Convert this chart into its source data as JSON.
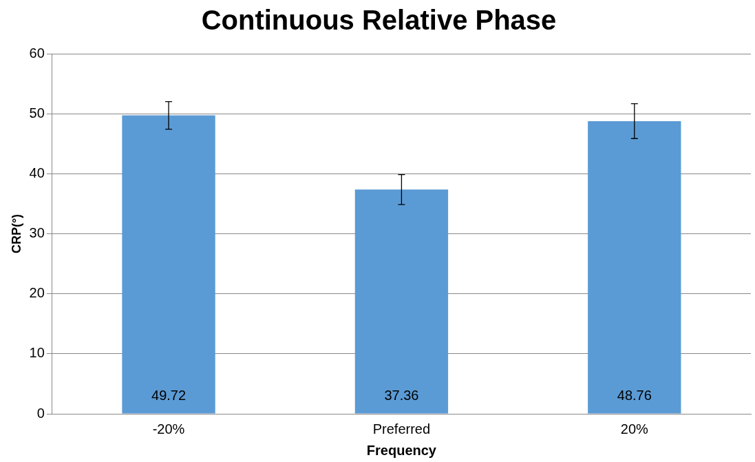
{
  "chart_data": {
    "type": "bar",
    "title": "Continuous Relative Phase",
    "xlabel": "Frequency",
    "ylabel": "CRP(°)",
    "categories": [
      "-20%",
      "Preferred",
      "20%"
    ],
    "values": [
      49.72,
      37.36,
      48.76
    ],
    "errors": [
      2.3,
      2.5,
      2.9
    ],
    "color": "#5b9bd5",
    "ylim": [
      0,
      60
    ],
    "yticks": [
      0,
      10,
      20,
      30,
      40,
      50,
      60
    ],
    "grid": "y",
    "data_labels": true
  }
}
